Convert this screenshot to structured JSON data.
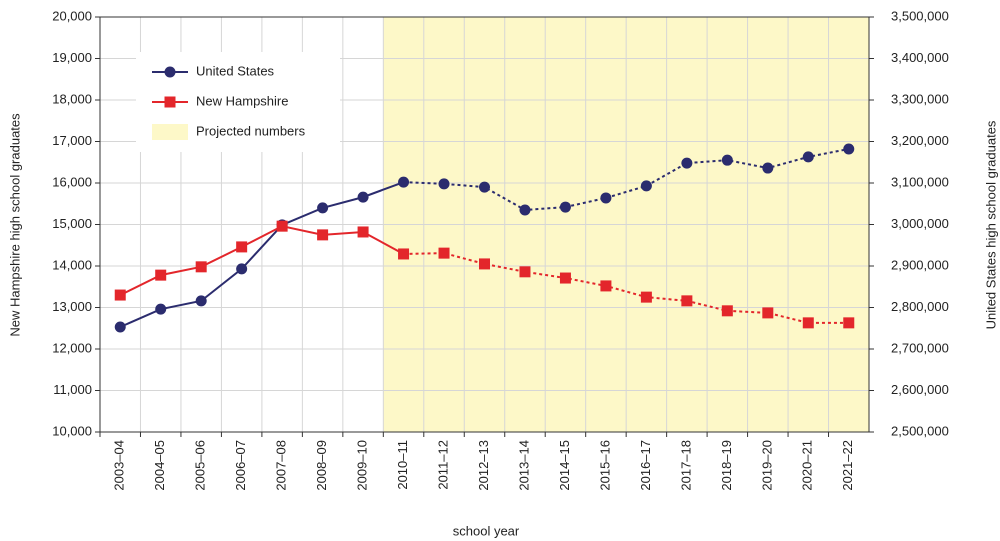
{
  "chart_data": {
    "type": "line",
    "x_label": "school year",
    "y_label": "New Hampshire high school graduates",
    "y2_label": "United States high school graduates",
    "categories": [
      "2003–04",
      "2004–05",
      "2005–06",
      "2006–07",
      "2007–08",
      "2008–09",
      "2009–10",
      "2010–11",
      "2011–12",
      "2012–13",
      "2013–14",
      "2014–15",
      "2015–16",
      "2016–17",
      "2017–18",
      "2018–19",
      "2019–20",
      "2020–21",
      "2021–22"
    ],
    "series": [
      {
        "name": "United States",
        "color": "#2b2c6e",
        "marker": "circle",
        "axis": "y2",
        "values": [
          2753000,
          2796000,
          2816000,
          2893000,
          2999000,
          3040000,
          3066000,
          3102000,
          3098000,
          3090000,
          3035000,
          3042000,
          3064000,
          3093000,
          3148000,
          3155000,
          3136000,
          3163000,
          3182000
        ]
      },
      {
        "name": "New Hampshire",
        "color": "#e3262b",
        "marker": "square",
        "axis": "y",
        "values": [
          13300,
          13780,
          13980,
          14460,
          14960,
          14750,
          14820,
          14290,
          14310,
          14050,
          13860,
          13710,
          13520,
          13250,
          13160,
          12920,
          12870,
          12630,
          12630
        ]
      }
    ],
    "projection": {
      "label": "Projected numbers",
      "start": "2010–11",
      "color": "#fdf8c8"
    },
    "ylim": [
      10000,
      20000
    ],
    "yticks": [
      {
        "value": 10000,
        "label": "10,000"
      },
      {
        "value": 11000,
        "label": "11,000"
      },
      {
        "value": 12000,
        "label": "12,000"
      },
      {
        "value": 13000,
        "label": "13,000"
      },
      {
        "value": 14000,
        "label": "14,000"
      },
      {
        "value": 15000,
        "label": "15,000"
      },
      {
        "value": 16000,
        "label": "16,000"
      },
      {
        "value": 17000,
        "label": "17,000"
      },
      {
        "value": 18000,
        "label": "18,000"
      },
      {
        "value": 19000,
        "label": "19,000"
      },
      {
        "value": 20000,
        "label": "20,000"
      }
    ],
    "y2lim": [
      2500000,
      3500000
    ],
    "y2ticks": [
      {
        "value": 2500000,
        "label": "2,500,000"
      },
      {
        "value": 2600000,
        "label": "2,600,000"
      },
      {
        "value": 2700000,
        "label": "2,700,000"
      },
      {
        "value": 2800000,
        "label": "2,800,000"
      },
      {
        "value": 2900000,
        "label": "2,900,000"
      },
      {
        "value": 3000000,
        "label": "3,000,000"
      },
      {
        "value": 3100000,
        "label": "3,100,000"
      },
      {
        "value": 3200000,
        "label": "3,200,000"
      },
      {
        "value": 3300000,
        "label": "3,300,000"
      },
      {
        "value": 3400000,
        "label": "3,400,000"
      },
      {
        "value": 3500000,
        "label": "3,500,000"
      }
    ],
    "grid": true,
    "legend": "upper left"
  }
}
